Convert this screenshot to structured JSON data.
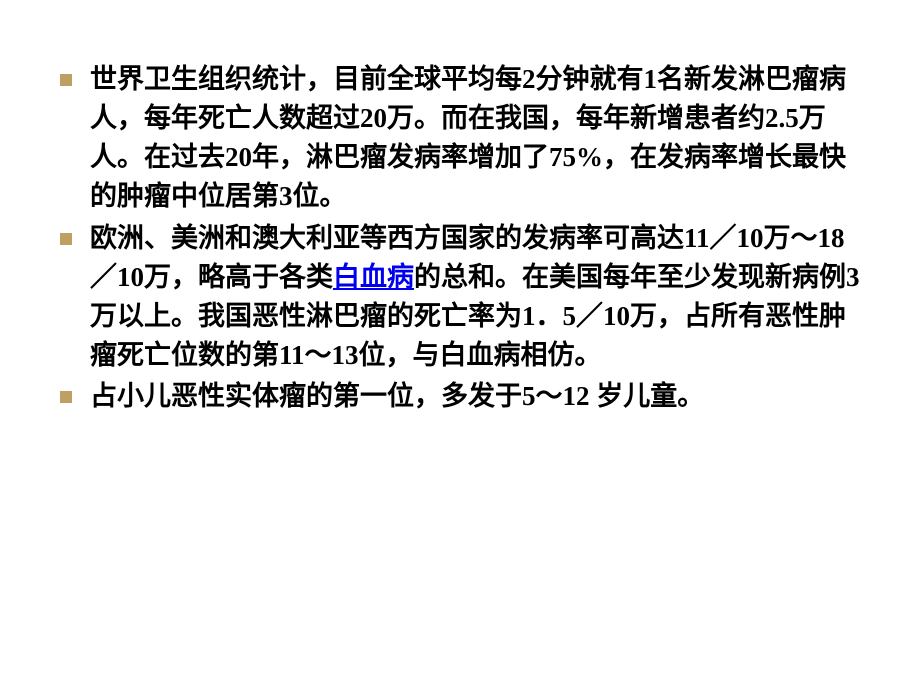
{
  "slide": {
    "background_color": "#ffffff",
    "bullet_color": "#c0a062",
    "text_color": "#000000",
    "link_color": "#0000ee",
    "font_size": 27,
    "font_weight": "bold",
    "bullets": [
      {
        "text_parts": [
          {
            "type": "text",
            "content": "世界卫生组织统计，目前全球平均每2分钟就有1名新发淋巴瘤病人，每年死亡人数超过20万。而在我国，每年新增患者约2.5万人。在过去20年，淋巴瘤发病率增加了75%，在发病率增长最快的肿瘤中位居第3位。"
          }
        ]
      },
      {
        "text_parts": [
          {
            "type": "text",
            "content": "欧洲、美洲和澳大利亚等西方国家的发病率可高达11／10万～18／10万，略高于各类"
          },
          {
            "type": "link",
            "content": "白血病"
          },
          {
            "type": "text",
            "content": "的总和。在美国每年至少发现新病例3万以上。我国恶性淋巴瘤的死亡率为1．5／10万，占所有恶性肿瘤死亡位数的第11～13位，与白血病相仿。"
          }
        ]
      },
      {
        "text_parts": [
          {
            "type": "text",
            "content": "占小儿恶性实体瘤的第一位，多发于5～12 岁儿童。"
          }
        ]
      }
    ]
  }
}
